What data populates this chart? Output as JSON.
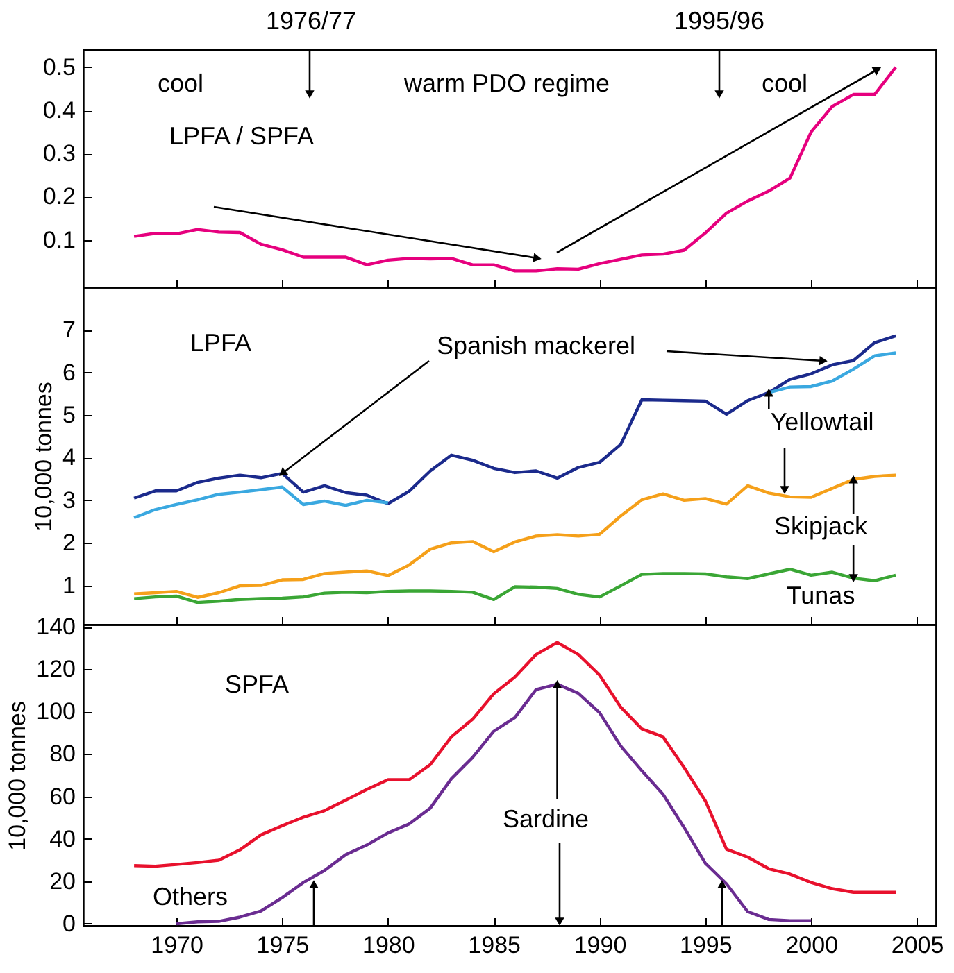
{
  "chart_data": [
    {
      "type": "line",
      "xlim": [
        1965.6,
        2005.9
      ],
      "ylim": [
        -0.01,
        0.54
      ],
      "xticks": [
        1970,
        1975,
        1980,
        1985,
        1990,
        1995,
        2000,
        2005
      ],
      "yticks": [
        0.1,
        0.2,
        0.3,
        0.4,
        0.5
      ],
      "tick_labels": "y",
      "grid": false,
      "legend": false,
      "annotations": [
        "1976/77",
        "1995/96",
        "cool",
        "warm PDO regime",
        "cool",
        "LPFA / SPFA"
      ],
      "x": [
        1968,
        1969,
        1970,
        1971,
        1972,
        1973,
        1974,
        1975,
        1976,
        1977,
        1978,
        1979,
        1980,
        1981,
        1982,
        1983,
        1984,
        1985,
        1986,
        1987,
        1988,
        1989,
        1990,
        1991,
        1992,
        1993,
        1994,
        1995,
        1996,
        1997,
        1998,
        1999,
        2000,
        2001,
        2002,
        2003,
        2004
      ],
      "series": [
        {
          "color": "#e6007e",
          "values": [
            0.108,
            0.115,
            0.114,
            0.124,
            0.118,
            0.117,
            0.09,
            0.077,
            0.06,
            0.06,
            0.06,
            0.042,
            0.053,
            0.057,
            0.056,
            0.057,
            0.042,
            0.042,
            0.028,
            0.028,
            0.033,
            0.032,
            0.045,
            0.055,
            0.065,
            0.067,
            0.076,
            0.116,
            0.162,
            0.19,
            0.213,
            0.243,
            0.35,
            0.409,
            0.437,
            0.437,
            0.5
          ]
        }
      ]
    },
    {
      "type": "line",
      "xlim": [
        1965.6,
        2005.9
      ],
      "ylim": [
        0.08,
        8.0
      ],
      "xticks": [
        1970,
        1975,
        1980,
        1985,
        1990,
        1995,
        2000,
        2005
      ],
      "yticks": [
        1,
        2,
        3,
        4,
        5,
        6,
        7
      ],
      "tick_labels": "y",
      "grid": false,
      "legend": false,
      "ylabel": "10,000 tonnes",
      "annotations": [
        "LPFA",
        {
          "text": "Spanish mackerel",
          "x": 1975,
          "y": 3.63
        },
        {
          "text": "Yellowtail",
          "x": 1998,
          "y": 5.53
        },
        {
          "text": "Skipjack",
          "x": 2002,
          "y": 3.49
        },
        {
          "text": "Tunas",
          "x": 2002,
          "y": 1.17
        }
      ],
      "x": [
        1968,
        1969,
        1970,
        1971,
        1972,
        1973,
        1974,
        1975,
        1976,
        1977,
        1978,
        1979,
        1980,
        1981,
        1982,
        1983,
        1984,
        1985,
        1986,
        1987,
        1988,
        1989,
        1990,
        1991,
        1992,
        1993,
        1994,
        1995,
        1996,
        1997,
        1998,
        1999,
        2000,
        2001,
        2002,
        2003,
        2004
      ],
      "series": [
        {
          "color": "#1b2a8c",
          "values": [
            3.05,
            3.22,
            3.22,
            3.42,
            3.52,
            3.59,
            3.53,
            3.63,
            3.19,
            3.34,
            3.18,
            3.12,
            2.92,
            3.21,
            3.69,
            4.06,
            3.94,
            3.75,
            3.65,
            3.69,
            3.52,
            3.77,
            3.89,
            4.31,
            5.36,
            5.35,
            5.34,
            5.33,
            5.02,
            5.34,
            5.53,
            5.84,
            5.97,
            6.18,
            6.28,
            6.7,
            6.86
          ]
        },
        {
          "color": "#3aa8e0",
          "values": [
            2.59,
            2.78,
            2.9,
            3.01,
            3.14,
            3.19,
            3.25,
            3.31,
            2.9,
            2.98,
            2.88,
            3.0,
            2.94,
            null,
            null,
            null,
            null,
            null,
            null,
            null,
            null,
            null,
            null,
            null,
            null,
            null,
            null,
            null,
            null,
            null,
            5.53,
            5.66,
            5.67,
            5.8,
            6.08,
            6.39,
            6.46
          ]
        },
        {
          "color": "#f5a01a",
          "values": [
            0.8,
            0.83,
            0.86,
            0.72,
            0.83,
            0.99,
            1.0,
            1.13,
            1.14,
            1.28,
            1.31,
            1.34,
            1.23,
            1.48,
            1.85,
            2.0,
            2.03,
            1.79,
            2.02,
            2.16,
            2.19,
            2.16,
            2.2,
            2.63,
            3.01,
            3.15,
            3.0,
            3.04,
            2.91,
            3.34,
            3.17,
            3.08,
            3.07,
            3.28,
            3.49,
            3.56,
            3.59
          ]
        },
        {
          "color": "#3aa635",
          "values": [
            0.69,
            0.73,
            0.75,
            0.6,
            0.63,
            0.67,
            0.69,
            0.7,
            0.73,
            0.82,
            0.84,
            0.83,
            0.86,
            0.87,
            0.87,
            0.86,
            0.84,
            0.67,
            0.97,
            0.96,
            0.93,
            0.79,
            0.73,
            0.99,
            1.26,
            1.28,
            1.28,
            1.27,
            1.2,
            1.16,
            1.27,
            1.38,
            1.24,
            1.31,
            1.17,
            1.11,
            1.24
          ]
        }
      ]
    },
    {
      "type": "line",
      "xlim": [
        1965.6,
        2005.9
      ],
      "ylim": [
        -1,
        141
      ],
      "xticks": [
        1970,
        1975,
        1980,
        1985,
        1990,
        1995,
        2000,
        2005
      ],
      "yticks": [
        0,
        20,
        40,
        60,
        80,
        100,
        120,
        140
      ],
      "grid": false,
      "legend": false,
      "ylabel": "10,000 tonnes",
      "annotations": [
        "SPFA",
        {
          "text": "Sardine",
          "x": 1988,
          "y": 112.9
        },
        "Others"
      ],
      "x": [
        1968,
        1969,
        1970,
        1971,
        1972,
        1973,
        1974,
        1975,
        1976,
        1977,
        1978,
        1979,
        1980,
        1981,
        1982,
        1983,
        1984,
        1985,
        1986,
        1987,
        1988,
        1989,
        1990,
        1991,
        1992,
        1993,
        1994,
        1995,
        1996,
        1997,
        1998,
        1999,
        2000,
        2001,
        2002,
        2003,
        2004
      ],
      "series": [
        {
          "color": "#e8112d",
          "values": [
            27.4,
            27.1,
            27.9,
            28.8,
            29.9,
            34.8,
            41.9,
            46.2,
            50.2,
            53.3,
            58.2,
            63.3,
            67.9,
            67.9,
            75.0,
            88.1,
            96.4,
            108.4,
            116.3,
            126.9,
            132.6,
            126.9,
            117.2,
            102.1,
            91.8,
            88.1,
            73.6,
            57.9,
            35.1,
            31.4,
            25.9,
            23.4,
            19.4,
            16.5,
            14.8,
            14.8,
            14.8
          ]
        },
        {
          "color": "#6a2c91",
          "x": [
            1970,
            1971,
            1972,
            1973,
            1974,
            1975,
            1976,
            1977,
            1978,
            1979,
            1980,
            1981,
            1982,
            1983,
            1984,
            1985,
            1986,
            1987,
            1988,
            1989,
            1990,
            1991,
            1992,
            1993,
            1994,
            1995,
            1996,
            1997,
            1998,
            1999,
            2000
          ],
          "values": [
            0,
            0.9,
            1.1,
            3.1,
            6.0,
            12.3,
            19.4,
            25.1,
            32.5,
            37.1,
            42.8,
            47.0,
            54.5,
            68.4,
            78.4,
            90.7,
            97.2,
            110.4,
            112.9,
            108.6,
            99.5,
            83.8,
            72.1,
            61.0,
            45.3,
            28.5,
            18.8,
            5.7,
            2.0,
            1.4,
            1.4
          ]
        }
      ]
    }
  ]
}
